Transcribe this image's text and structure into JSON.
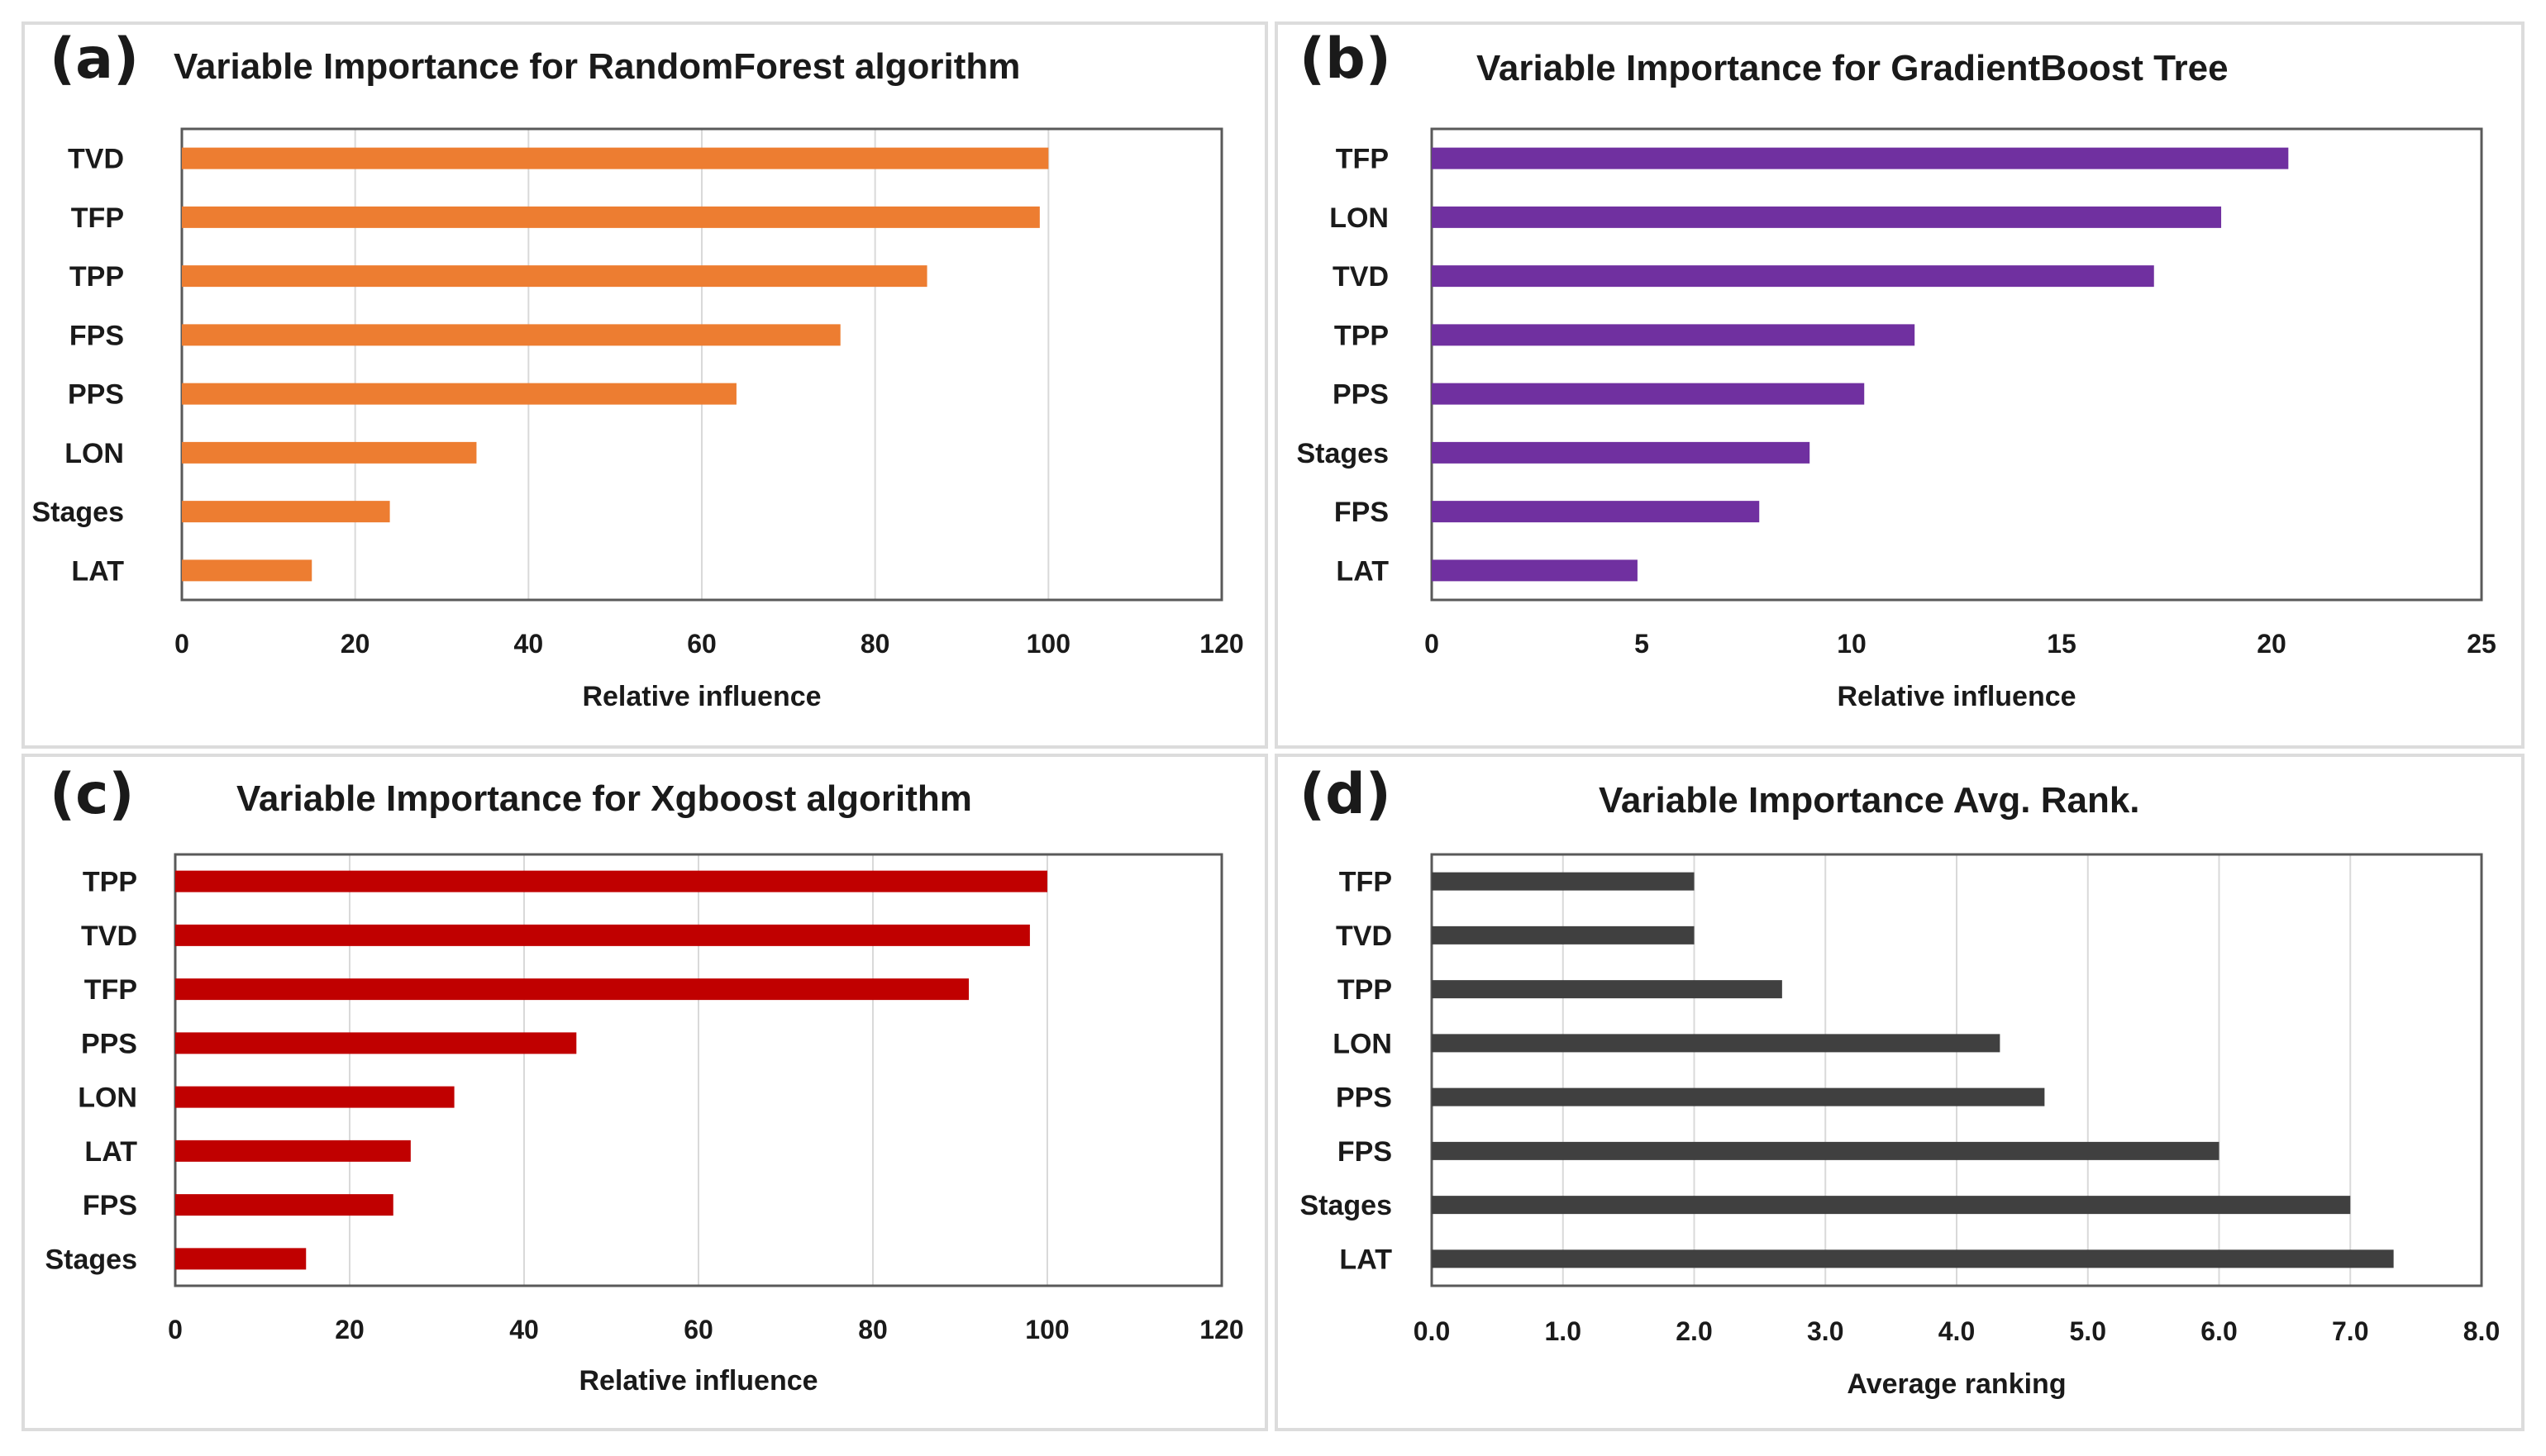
{
  "chart_data": [
    {
      "type": "bar",
      "orientation": "horizontal",
      "panel_label": "(a)",
      "title": "Variable Importance for RandomForest algorithm",
      "categories": [
        "TVD",
        "TFP",
        "TPP",
        "FPS",
        "PPS",
        "LON",
        "Stages",
        "LAT"
      ],
      "values": [
        100,
        99,
        86,
        76,
        64,
        34,
        24,
        15
      ],
      "xlabel": "Relative influence",
      "ylabel": "",
      "xlim": [
        0,
        120
      ],
      "xticks": [
        0,
        20,
        40,
        60,
        80,
        100,
        120
      ],
      "tick_labels": [
        "0",
        "20",
        "40",
        "60",
        "80",
        "100",
        "120"
      ],
      "color": "#ed7d31",
      "grid": true
    },
    {
      "type": "bar",
      "orientation": "horizontal",
      "panel_label": "(b)",
      "title": "Variable Importance for GradientBoost Tree",
      "categories": [
        "TFP",
        "LON",
        "TVD",
        "TPP",
        "PPS",
        "Stages",
        "FPS",
        "LAT"
      ],
      "values": [
        20.4,
        18.8,
        17.2,
        11.5,
        10.3,
        9.0,
        7.8,
        4.9
      ],
      "xlabel": "Relative influence",
      "ylabel": "",
      "xlim": [
        0,
        25
      ],
      "xticks": [
        0,
        5,
        10,
        15,
        20,
        25
      ],
      "tick_labels": [
        "0",
        "5",
        "10",
        "15",
        "20",
        "25"
      ],
      "color": "#7030a0",
      "grid": false
    },
    {
      "type": "bar",
      "orientation": "horizontal",
      "panel_label": "(c)",
      "title": "Variable Importance for Xgboost algorithm",
      "categories": [
        "TPP",
        "TVD",
        "TFP",
        "PPS",
        "LON",
        "LAT",
        "FPS",
        "Stages"
      ],
      "values": [
        100,
        98,
        91,
        46,
        32,
        27,
        25,
        15
      ],
      "xlabel": "Relative influence",
      "ylabel": "",
      "xlim": [
        0,
        120
      ],
      "xticks": [
        0,
        20,
        40,
        60,
        80,
        100,
        120
      ],
      "tick_labels": [
        "0",
        "20",
        "40",
        "60",
        "80",
        "100",
        "120"
      ],
      "color": "#c00000",
      "grid": true
    },
    {
      "type": "bar",
      "orientation": "horizontal",
      "panel_label": "(d)",
      "title": "Variable Importance Avg. Rank.",
      "categories": [
        "TFP",
        "TVD",
        "TPP",
        "LON",
        "PPS",
        "FPS",
        "Stages",
        "LAT"
      ],
      "values": [
        2.0,
        2.0,
        2.67,
        4.33,
        4.67,
        6.0,
        7.0,
        7.33
      ],
      "xlabel": "Average ranking",
      "ylabel": "",
      "xlim": [
        0,
        8
      ],
      "xticks": [
        0,
        1,
        2,
        3,
        4,
        5,
        6,
        7,
        8
      ],
      "tick_labels": [
        "0.0",
        "1.0",
        "2.0",
        "3.0",
        "4.0",
        "5.0",
        "6.0",
        "7.0",
        "8.0"
      ],
      "color": "#404040",
      "grid": true
    }
  ]
}
